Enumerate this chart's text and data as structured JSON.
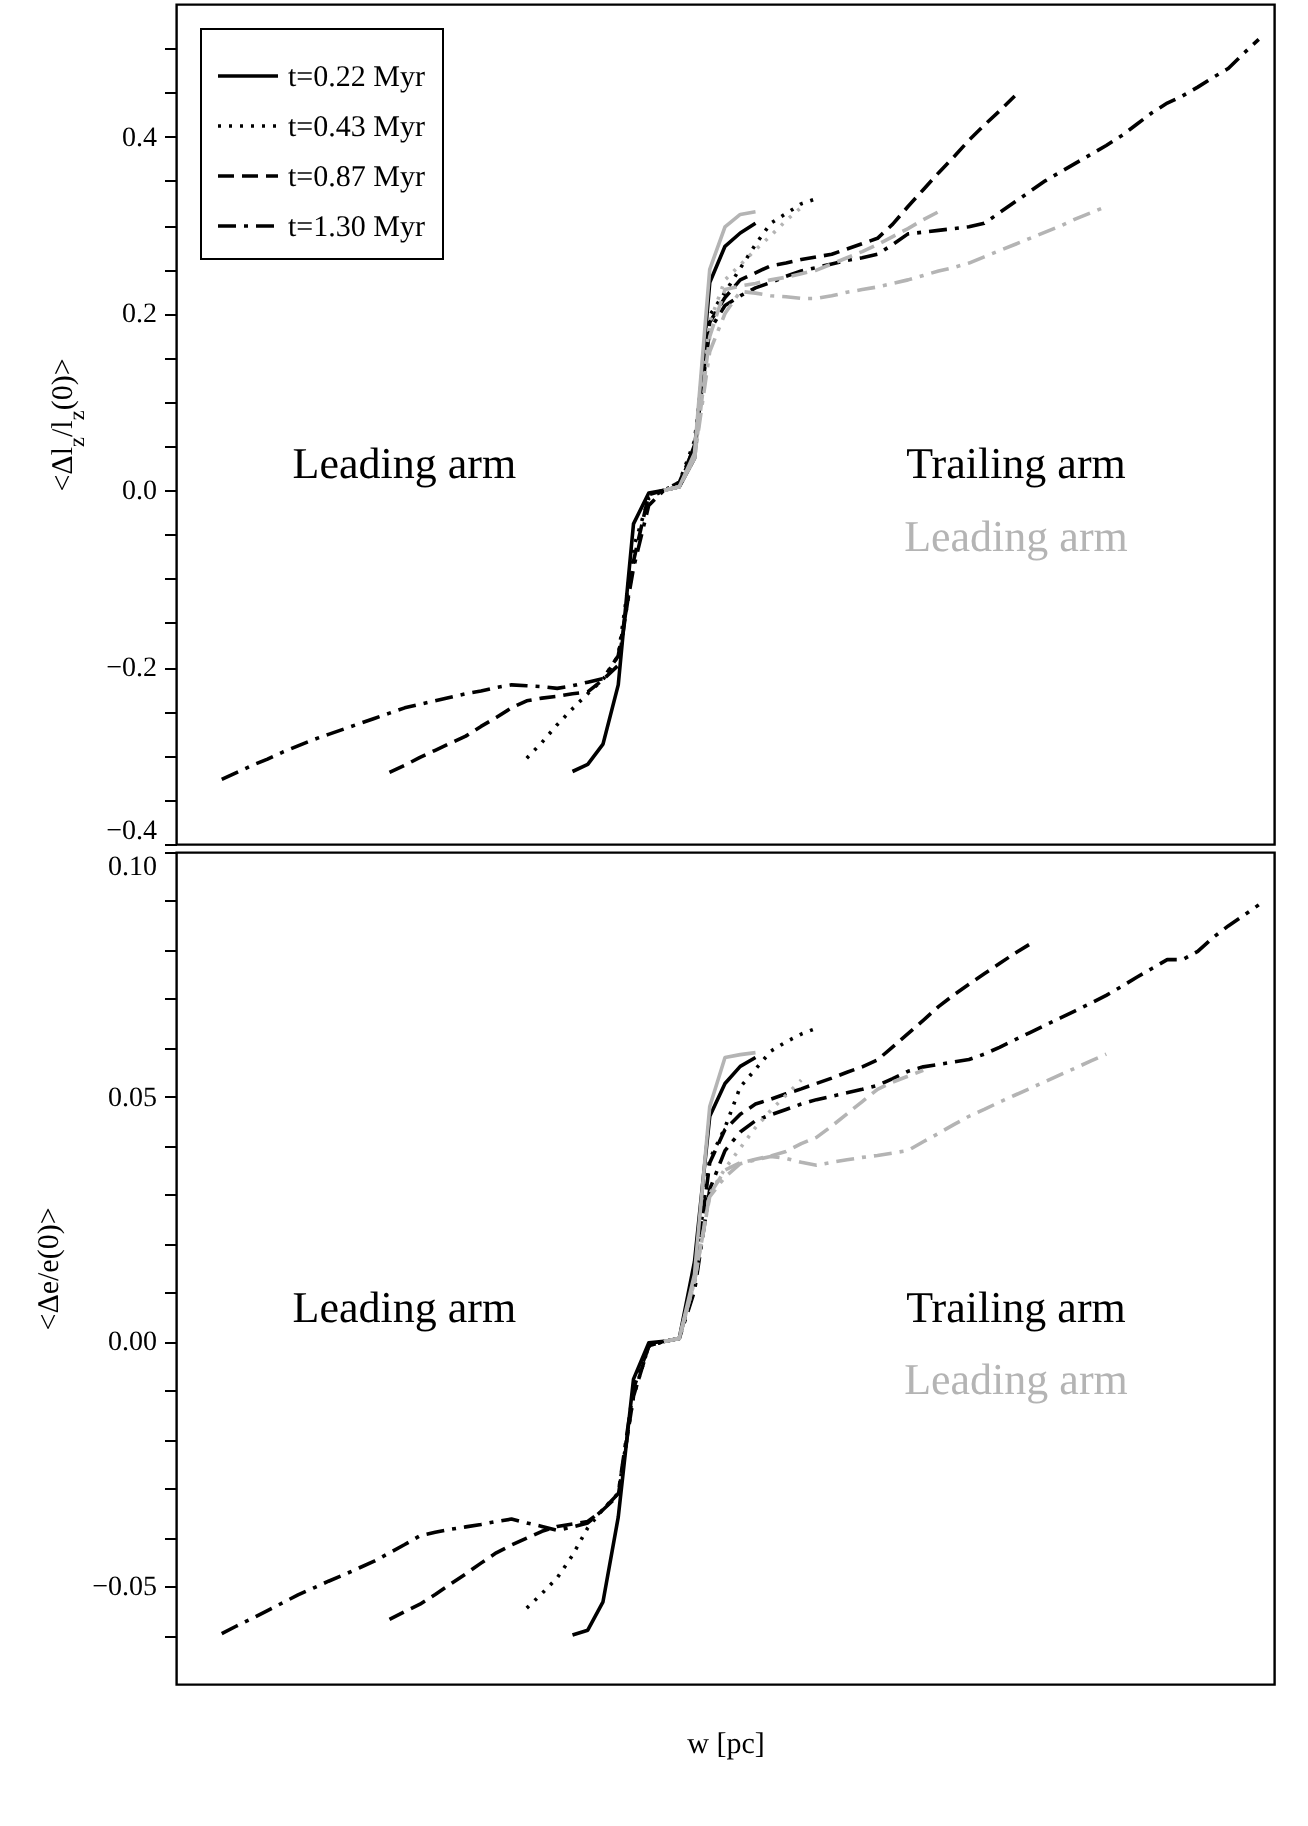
{
  "chart_data": [
    {
      "type": "line",
      "ylabel": "<Δl$_{z}$/l$_{z}$(0)>",
      "categories": [
        null,
        null,
        null,
        null,
        null,
        null,
        null,
        null,
        null,
        null,
        null,
        null,
        null,
        null,
        null,
        null,
        null,
        null,
        null,
        null,
        null,
        null,
        null,
        null,
        null,
        null,
        null,
        null,
        null,
        null,
        null,
        null,
        null,
        null,
        null,
        null,
        null,
        null,
        null,
        null,
        null,
        null,
        null,
        null,
        null,
        null,
        null,
        null,
        null,
        null,
        null,
        null,
        null,
        null,
        null,
        null,
        null,
        null,
        null,
        null,
        null,
        null,
        null,
        null,
        null,
        null,
        null,
        null,
        null,
        null,
        null,
        null,
        null
      ],
      "ylim": [
        -0.4,
        0.55
      ],
      "yticks": [
        {
          "value": -0.4,
          "label": "−0.4"
        },
        {
          "value": -0.35,
          "label": null
        },
        {
          "value": -0.3,
          "label": null
        },
        {
          "value": -0.25,
          "label": null
        },
        {
          "value": -0.2,
          "label": "−0.2"
        },
        {
          "value": -0.15,
          "label": null
        },
        {
          "value": -0.1,
          "label": null
        },
        {
          "value": -0.05,
          "label": null
        },
        {
          "value": 0,
          "label": "0.0"
        },
        {
          "value": 0.05,
          "label": null
        },
        {
          "value": 0.1,
          "label": null
        },
        {
          "value": 0.15,
          "label": null
        },
        {
          "value": 0.2,
          "label": "0.2"
        },
        {
          "value": 0.25,
          "label": null
        },
        {
          "value": 0.3,
          "label": null
        },
        {
          "value": 0.35,
          "label": null
        },
        {
          "value": 0.4,
          "label": "0.4"
        },
        {
          "value": 0.45,
          "label": null
        },
        {
          "value": 0.5,
          "label": null
        }
      ],
      "tick_labels": "y",
      "legend": "top left",
      "annotations": [
        "Leading arm",
        "Trailing arm",
        "Leading arm"
      ],
      "series": [
        {
          "name": "t=0.22 Myr",
          "color": "#000000",
          "line_style": "solid",
          "values": [
            null,
            null,
            null,
            null,
            null,
            null,
            null,
            null,
            null,
            null,
            null,
            null,
            null,
            null,
            null,
            null,
            null,
            null,
            null,
            null,
            null,
            null,
            null,
            null,
            null,
            null,
            -0.318,
            -0.31,
            -0.287,
            -0.22,
            -0.038,
            -0.003,
            0,
            0.004,
            0.036,
            0.235,
            0.276,
            0.291,
            0.302,
            null,
            null,
            null,
            null,
            null,
            null,
            null,
            null,
            null,
            null,
            null,
            null,
            null,
            null,
            null,
            null,
            null,
            null,
            null,
            null,
            null,
            null,
            null,
            null,
            null,
            null,
            null,
            null,
            null,
            null,
            null,
            null,
            null,
            null
          ]
        },
        {
          "name": "t=0.43 Myr",
          "color": "#000000",
          "line_style": "dotted",
          "values": [
            null,
            null,
            null,
            null,
            null,
            null,
            null,
            null,
            null,
            null,
            null,
            null,
            null,
            null,
            null,
            null,
            null,
            null,
            null,
            null,
            null,
            null,
            null,
            -0.303,
            -0.285,
            -0.265,
            -0.247,
            -0.23,
            -0.214,
            -0.187,
            -0.065,
            -0.009,
            0,
            0.009,
            0.056,
            0.198,
            0.224,
            0.251,
            0.278,
            0.302,
            0.313,
            0.324,
            0.33,
            null,
            null,
            null,
            null,
            null,
            null,
            null,
            null,
            null,
            null,
            null,
            null,
            null,
            null,
            null,
            null,
            null,
            null,
            null,
            null,
            null,
            null,
            null,
            null,
            null,
            null,
            null,
            null,
            null,
            null
          ]
        },
        {
          "name": "t=0.87 Myr",
          "color": "#000000",
          "line_style": "dashed",
          "values": [
            null,
            null,
            null,
            null,
            null,
            null,
            null,
            null,
            null,
            null,
            null,
            null,
            null,
            null,
            -0.319,
            -0.311,
            -0.302,
            -0.294,
            -0.286,
            -0.278,
            -0.267,
            -0.257,
            -0.246,
            -0.238,
            -0.235,
            -0.233,
            -0.23,
            -0.228,
            -0.214,
            -0.198,
            -0.08,
            -0.005,
            0,
            0.009,
            0.049,
            0.19,
            0.218,
            0.238,
            0.246,
            0.254,
            0.257,
            0.261,
            0.264,
            0.267,
            0.273,
            0.279,
            0.285,
            0.301,
            0.321,
            0.34,
            0.359,
            0.377,
            0.396,
            0.413,
            0.429,
            0.446,
            null,
            null,
            null,
            null,
            null,
            null,
            null,
            null,
            null,
            null,
            null,
            null,
            null,
            null,
            null,
            null,
            null
          ]
        },
        {
          "name": "t=1.30 Myr",
          "color": "#000000",
          "line_style": "dashdot",
          "values": [
            null,
            null,
            null,
            -0.327,
            -0.319,
            -0.311,
            -0.304,
            -0.296,
            -0.289,
            -0.282,
            -0.276,
            -0.27,
            -0.264,
            -0.258,
            -0.252,
            -0.246,
            -0.242,
            -0.238,
            -0.234,
            -0.23,
            -0.227,
            -0.223,
            -0.22,
            -0.221,
            -0.222,
            -0.224,
            -0.221,
            -0.217,
            -0.213,
            -0.187,
            -0.088,
            -0.017,
            0,
            0.004,
            0.051,
            0.181,
            0.209,
            0.22,
            0.229,
            0.235,
            0.242,
            0.248,
            0.252,
            0.256,
            0.26,
            0.263,
            0.267,
            0.278,
            0.29,
            0.292,
            0.294,
            0.296,
            0.298,
            0.302,
            0.314,
            0.326,
            0.338,
            0.35,
            0.36,
            0.37,
            0.38,
            0.39,
            0.401,
            0.414,
            0.427,
            0.438,
            0.446,
            0.456,
            0.467,
            0.477,
            0.494,
            0.51,
            null
          ]
        },
        {
          "color": "#b4b4b4",
          "line_style": "solid",
          "values": [
            null,
            null,
            null,
            null,
            null,
            null,
            null,
            null,
            null,
            null,
            null,
            null,
            null,
            null,
            null,
            null,
            null,
            null,
            null,
            null,
            null,
            null,
            null,
            null,
            null,
            null,
            null,
            null,
            null,
            null,
            null,
            null,
            0,
            0.004,
            0.042,
            0.25,
            0.298,
            0.312,
            0.315,
            null,
            null,
            null,
            null,
            null,
            null,
            null,
            null,
            null,
            null,
            null,
            null,
            null,
            null,
            null,
            null,
            null,
            null,
            null,
            null,
            null,
            null,
            null,
            null,
            null,
            null,
            null,
            null,
            null,
            null,
            null,
            null,
            null,
            null
          ]
        },
        {
          "color": "#b4b4b4",
          "line_style": "dotted",
          "values": [
            null,
            null,
            null,
            null,
            null,
            null,
            null,
            null,
            null,
            null,
            null,
            null,
            null,
            null,
            null,
            null,
            null,
            null,
            null,
            null,
            null,
            null,
            null,
            null,
            null,
            null,
            null,
            null,
            null,
            null,
            null,
            null,
            0,
            0.004,
            0.036,
            0.19,
            0.238,
            0.255,
            0.272,
            0.288,
            0.305,
            0.32,
            null,
            null,
            null,
            null,
            null,
            null,
            null,
            null,
            null,
            null,
            null,
            null,
            null,
            null,
            null,
            null,
            null,
            null,
            null,
            null,
            null,
            null,
            null,
            null,
            null,
            null,
            null,
            null,
            null,
            null,
            null
          ]
        },
        {
          "color": "#b4b4b4",
          "line_style": "dashed",
          "values": [
            null,
            null,
            null,
            null,
            null,
            null,
            null,
            null,
            null,
            null,
            null,
            null,
            null,
            null,
            null,
            null,
            null,
            null,
            null,
            null,
            null,
            null,
            null,
            null,
            null,
            null,
            null,
            null,
            null,
            null,
            null,
            null,
            0,
            0.004,
            0.036,
            0.174,
            0.227,
            0.231,
            0.234,
            0.238,
            0.241,
            0.245,
            0.249,
            0.256,
            0.263,
            0.27,
            0.278,
            0.287,
            0.296,
            0.306,
            0.315,
            null,
            null,
            null,
            null,
            null,
            null,
            null,
            null,
            null,
            null,
            null,
            null,
            null,
            null,
            null,
            null,
            null,
            null,
            null,
            null,
            null,
            null
          ]
        },
        {
          "color": "#b4b4b4",
          "line_style": "dashdot",
          "values": [
            null,
            null,
            null,
            null,
            null,
            null,
            null,
            null,
            null,
            null,
            null,
            null,
            null,
            null,
            null,
            null,
            null,
            null,
            null,
            null,
            null,
            null,
            null,
            null,
            null,
            null,
            null,
            null,
            null,
            null,
            null,
            null,
            0,
            0.004,
            0.036,
            0.157,
            0.2,
            0.225,
            0.223,
            0.22,
            0.219,
            0.217,
            0.217,
            0.22,
            0.224,
            0.227,
            0.23,
            0.234,
            0.238,
            0.243,
            0.248,
            0.252,
            0.257,
            0.264,
            0.271,
            0.278,
            0.285,
            0.292,
            0.299,
            0.307,
            0.314,
            0.321,
            null,
            null,
            null,
            null,
            null,
            null,
            null,
            null,
            null,
            null,
            null
          ]
        }
      ]
    },
    {
      "type": "line",
      "xlabel": "w [pc]",
      "ylabel": "<Δe/e(0)>",
      "categories": [
        null,
        null,
        null,
        null,
        null,
        null,
        null,
        null,
        null,
        null,
        null,
        null,
        null,
        null,
        null,
        null,
        null,
        null,
        null,
        null,
        null,
        null,
        null,
        null,
        null,
        null,
        null,
        null,
        null,
        null,
        null,
        null,
        null,
        null,
        null,
        null,
        null,
        null,
        null,
        null,
        null,
        null,
        null,
        null,
        null,
        null,
        null,
        null,
        null,
        null,
        null,
        null,
        null,
        null,
        null,
        null,
        null,
        null,
        null,
        null,
        null,
        null,
        null,
        null,
        null,
        null,
        null,
        null,
        null,
        null,
        null,
        null,
        null
      ],
      "ylim": [
        -0.07,
        0.1
      ],
      "yticks": [
        {
          "value": -0.06,
          "label": null
        },
        {
          "value": -0.05,
          "label": "−0.05"
        },
        {
          "value": -0.04,
          "label": null
        },
        {
          "value": -0.03,
          "label": null
        },
        {
          "value": -0.02,
          "label": null
        },
        {
          "value": -0.01,
          "label": null
        },
        {
          "value": 0,
          "label": "0.00"
        },
        {
          "value": 0.01,
          "label": null
        },
        {
          "value": 0.02,
          "label": null
        },
        {
          "value": 0.03,
          "label": null
        },
        {
          "value": 0.04,
          "label": null
        },
        {
          "value": 0.05,
          "label": "0.05"
        },
        {
          "value": 0.06,
          "label": null
        },
        {
          "value": 0.07,
          "label": null
        },
        {
          "value": 0.08,
          "label": null
        },
        {
          "value": 0.09,
          "label": null
        },
        {
          "value": 0.1,
          "label": "0.10"
        }
      ],
      "tick_labels": "y",
      "annotations": [
        "Leading arm",
        "Trailing arm",
        "Leading arm"
      ],
      "series": [
        {
          "color": "#000000",
          "line_style": "solid",
          "values": [
            null,
            null,
            null,
            null,
            null,
            null,
            null,
            null,
            null,
            null,
            null,
            null,
            null,
            null,
            null,
            null,
            null,
            null,
            null,
            null,
            null,
            null,
            null,
            null,
            null,
            null,
            -0.06,
            -0.059,
            -0.0532,
            -0.0359,
            -0.0077,
            -0.0003,
            0,
            0.0006,
            0.0163,
            0.046,
            0.0527,
            0.0562,
            0.058,
            null,
            null,
            null,
            null,
            null,
            null,
            null,
            null,
            null,
            null,
            null,
            null,
            null,
            null,
            null,
            null,
            null,
            null,
            null,
            null,
            null,
            null,
            null,
            null,
            null,
            null,
            null,
            null,
            null,
            null,
            null,
            null,
            null,
            null
          ]
        },
        {
          "color": "#000000",
          "line_style": "dotted",
          "values": [
            null,
            null,
            null,
            null,
            null,
            null,
            null,
            null,
            null,
            null,
            null,
            null,
            null,
            null,
            null,
            null,
            null,
            null,
            null,
            null,
            null,
            null,
            null,
            -0.0545,
            -0.0515,
            -0.0483,
            -0.0437,
            -0.0381,
            -0.0343,
            -0.031,
            -0.0112,
            -0.0009,
            0,
            0.0006,
            0.0137,
            0.0372,
            0.0437,
            0.052,
            0.0556,
            0.0593,
            0.0612,
            0.0628,
            0.064,
            null,
            null,
            null,
            null,
            null,
            null,
            null,
            null,
            null,
            null,
            null,
            null,
            null,
            null,
            null,
            null,
            null,
            null,
            null,
            null,
            null,
            null,
            null,
            null,
            null,
            null,
            null,
            null,
            null,
            null
          ]
        },
        {
          "color": "#000000",
          "line_style": "dashed",
          "values": [
            null,
            null,
            null,
            null,
            null,
            null,
            null,
            null,
            null,
            null,
            null,
            null,
            null,
            null,
            -0.0568,
            -0.0552,
            -0.0537,
            -0.0517,
            -0.0496,
            -0.0475,
            -0.0453,
            -0.0432,
            -0.0416,
            -0.0402,
            -0.0388,
            -0.0378,
            -0.0373,
            -0.0368,
            -0.0344,
            -0.0315,
            -0.0112,
            -0.0009,
            0,
            0.0006,
            0.0123,
            0.0365,
            0.0433,
            0.0464,
            0.0485,
            0.0495,
            0.0506,
            0.0516,
            0.0527,
            0.0538,
            0.055,
            0.0561,
            0.0575,
            0.0602,
            0.0629,
            0.0656,
            0.0684,
            0.0708,
            0.073,
            0.0751,
            0.0772,
            0.0793,
            0.0812,
            null,
            null,
            null,
            null,
            null,
            null,
            null,
            null,
            null,
            null,
            null,
            null,
            null,
            null,
            null,
            null
          ]
        },
        {
          "color": "#000000",
          "line_style": "dashdot",
          "values": [
            null,
            null,
            null,
            -0.0597,
            -0.0581,
            -0.0566,
            -0.055,
            -0.0534,
            -0.0518,
            -0.0504,
            -0.049,
            -0.0477,
            -0.0463,
            -0.0449,
            -0.0432,
            -0.0415,
            -0.0397,
            -0.039,
            -0.0384,
            -0.0379,
            -0.0374,
            -0.0368,
            -0.0363,
            -0.0371,
            -0.0378,
            -0.0386,
            -0.0379,
            -0.0371,
            -0.0344,
            -0.0311,
            -0.0096,
            -0.001,
            0,
            0.0006,
            0.0103,
            0.0311,
            0.039,
            0.0428,
            0.0451,
            0.0463,
            0.0474,
            0.0485,
            0.0494,
            0.0501,
            0.0508,
            0.0515,
            0.0523,
            0.0537,
            0.0552,
            0.0561,
            0.0566,
            0.0571,
            0.0576,
            0.0587,
            0.0601,
            0.0616,
            0.0631,
            0.0646,
            0.0661,
            0.0676,
            0.0691,
            0.0707,
            0.0725,
            0.0744,
            0.0762,
            0.078,
            0.078,
            0.0797,
            0.0825,
            0.0849,
            0.087,
            0.0892,
            null
          ]
        },
        {
          "color": "#b4b4b4",
          "line_style": "solid",
          "values": [
            null,
            null,
            null,
            null,
            null,
            null,
            null,
            null,
            null,
            null,
            null,
            null,
            null,
            null,
            null,
            null,
            null,
            null,
            null,
            null,
            null,
            null,
            null,
            null,
            null,
            null,
            null,
            null,
            null,
            null,
            null,
            null,
            0,
            0.0006,
            0.0137,
            0.048,
            0.058,
            0.0586,
            0.059,
            null,
            null,
            null,
            null,
            null,
            null,
            null,
            null,
            null,
            null,
            null,
            null,
            null,
            null,
            null,
            null,
            null,
            null,
            null,
            null,
            null,
            null,
            null,
            null,
            null,
            null,
            null,
            null,
            null,
            null,
            null,
            null,
            null,
            null
          ]
        },
        {
          "color": "#b4b4b4",
          "line_style": "dotted",
          "values": [
            null,
            null,
            null,
            null,
            null,
            null,
            null,
            null,
            null,
            null,
            null,
            null,
            null,
            null,
            null,
            null,
            null,
            null,
            null,
            null,
            null,
            null,
            null,
            null,
            null,
            null,
            null,
            null,
            null,
            null,
            null,
            null,
            0,
            0.0006,
            0.0123,
            0.0302,
            0.0353,
            0.0395,
            0.0437,
            0.0472,
            0.0503,
            0.0534,
            null,
            null,
            null,
            null,
            null,
            null,
            null,
            null,
            null,
            null,
            null,
            null,
            null,
            null,
            null,
            null,
            null,
            null,
            null,
            null,
            null,
            null,
            null,
            null,
            null,
            null,
            null,
            null,
            null,
            null,
            null
          ]
        },
        {
          "color": "#b4b4b4",
          "line_style": "dashed",
          "values": [
            null,
            null,
            null,
            null,
            null,
            null,
            null,
            null,
            null,
            null,
            null,
            null,
            null,
            null,
            null,
            null,
            null,
            null,
            null,
            null,
            null,
            null,
            null,
            null,
            null,
            null,
            null,
            null,
            null,
            null,
            null,
            null,
            0,
            0.0006,
            0.0123,
            0.03,
            0.035,
            0.0365,
            0.0372,
            0.0379,
            0.0388,
            0.0404,
            0.0417,
            0.044,
            0.0465,
            0.049,
            0.0515,
            0.053,
            0.0542,
            0.0554,
            null,
            null,
            null,
            null,
            null,
            null,
            null,
            null,
            null,
            null,
            null,
            null,
            null,
            null,
            null,
            null,
            null,
            null,
            null,
            null,
            null,
            null,
            null
          ]
        },
        {
          "color": "#b4b4b4",
          "line_style": "dashdot",
          "values": [
            null,
            null,
            null,
            null,
            null,
            null,
            null,
            null,
            null,
            null,
            null,
            null,
            null,
            null,
            null,
            null,
            null,
            null,
            null,
            null,
            null,
            null,
            null,
            null,
            null,
            null,
            null,
            null,
            null,
            null,
            null,
            null,
            0,
            0.0006,
            0.0123,
            0.0296,
            0.0336,
            0.0363,
            0.0371,
            0.0378,
            0.0374,
            0.0366,
            0.036,
            0.0366,
            0.0371,
            0.0376,
            0.038,
            0.0385,
            0.039,
            0.0408,
            0.0425,
            0.0443,
            0.046,
            0.0474,
            0.0489,
            0.0503,
            0.0517,
            0.0531,
            0.0545,
            0.0559,
            0.0573,
            0.0587,
            null,
            null,
            null,
            null,
            null,
            null,
            null,
            null,
            null,
            null,
            null
          ]
        }
      ]
    }
  ]
}
